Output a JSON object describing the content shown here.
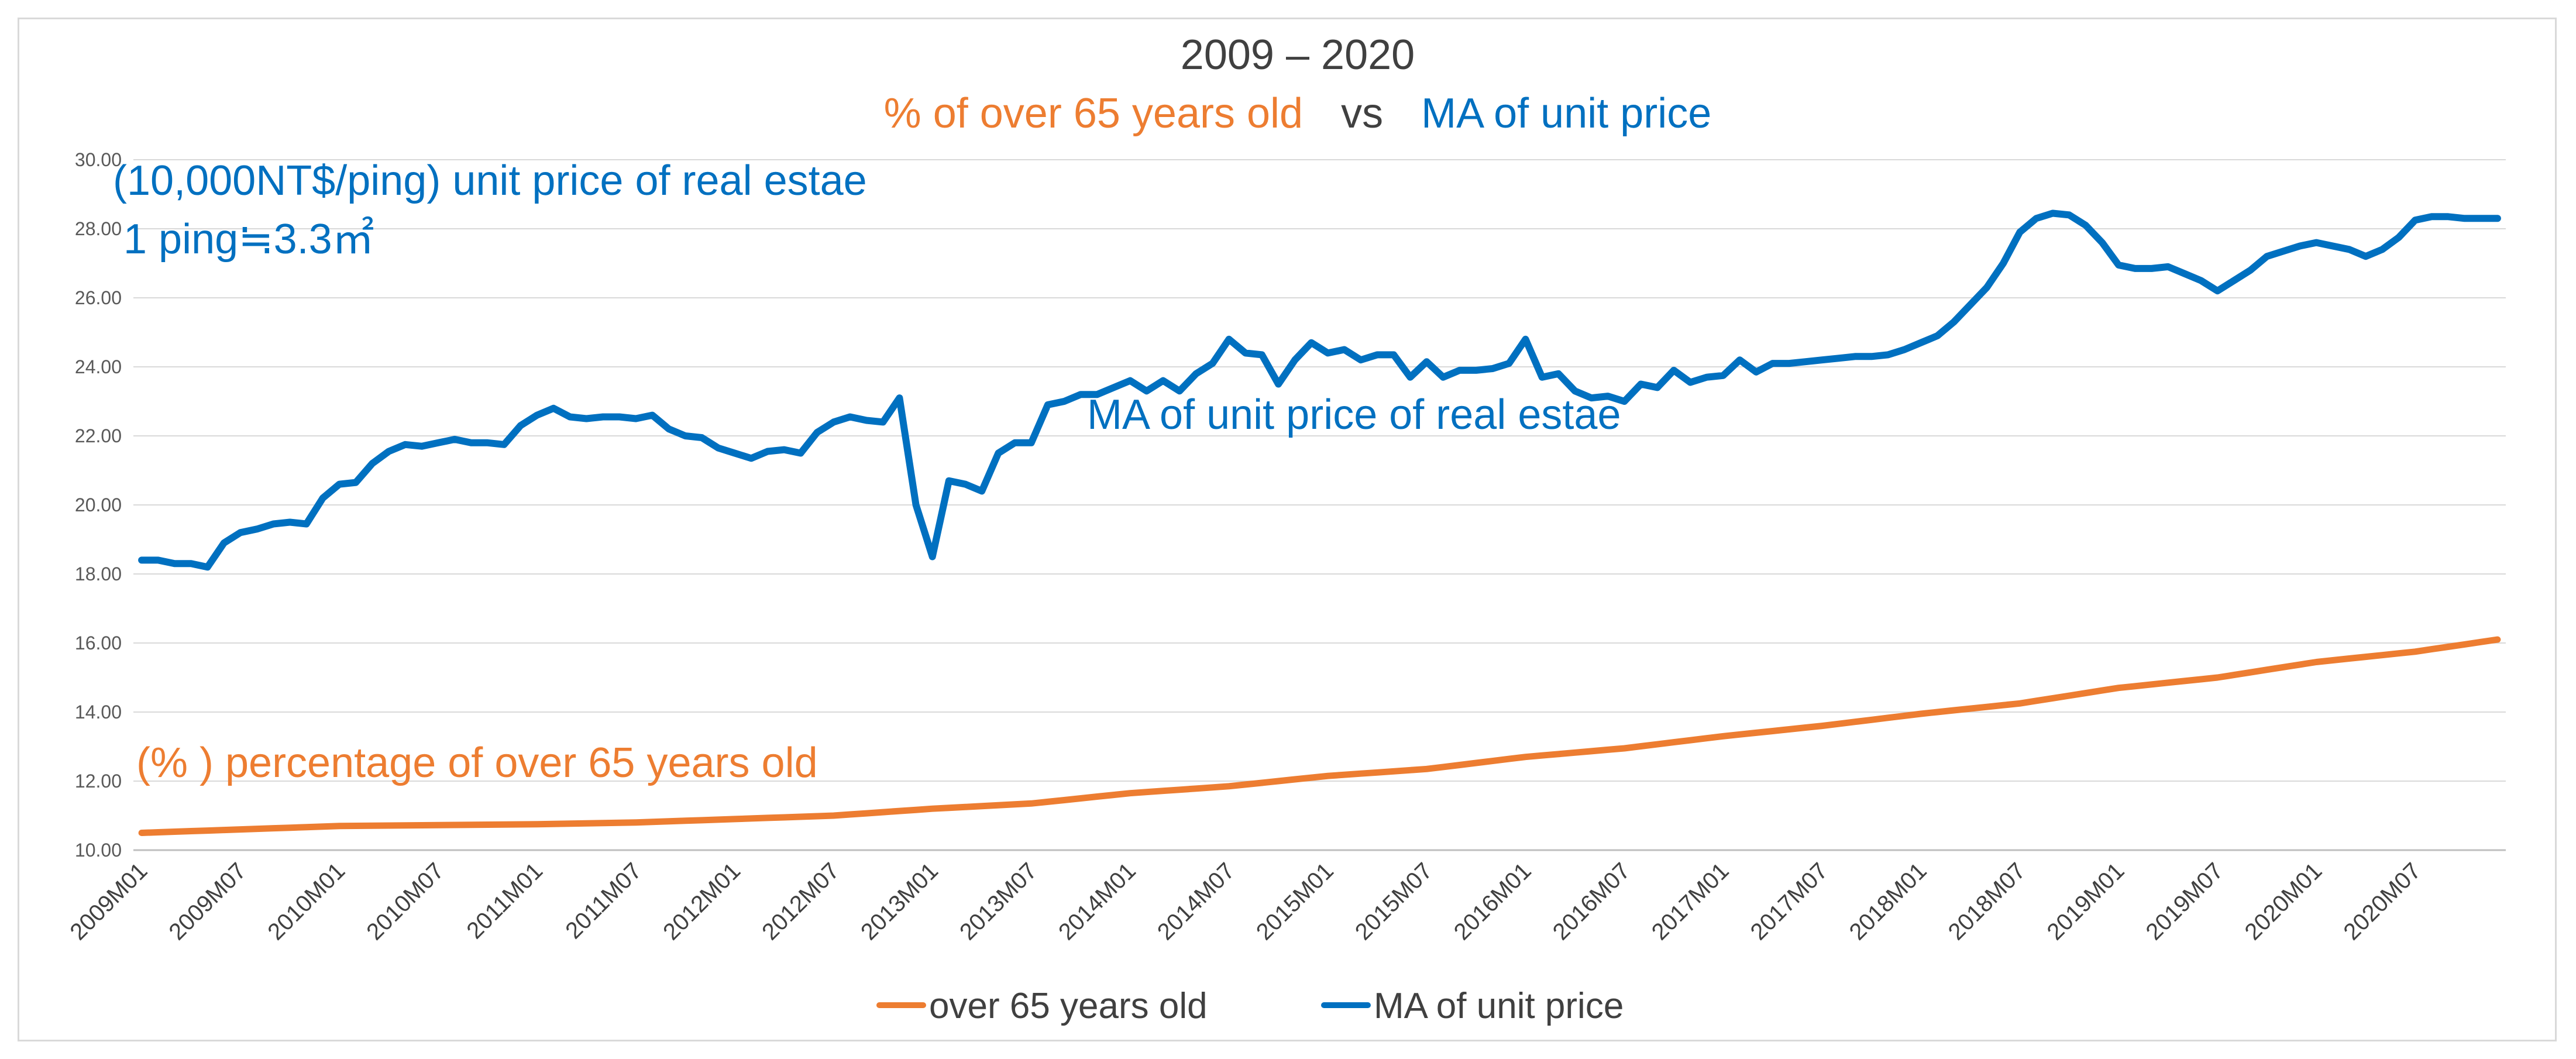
{
  "colors": {
    "orange": "#ED7D31",
    "blue": "#0070C0",
    "grid": "#d9d9d9",
    "axis": "#bfbfbf"
  },
  "title": {
    "line1": "2009 – 2020",
    "line2_part1": "% of over 65 years old",
    "line2_vs": "vs",
    "line2_part2": "MA of unit price"
  },
  "annotations": {
    "unit_label_line1": "(10,000NT$/ping) unit price of real estae",
    "unit_label_line2": "1 ping≒3.3㎡",
    "blue_series_label": "MA of unit price of real estae",
    "orange_series_label": "(% ) percentage of over 65 years old"
  },
  "legend": {
    "series1": "over 65 years old",
    "series2": "MA of unit price"
  },
  "chart_data": {
    "type": "line",
    "title": "2009 – 2020 % of over 65 years old vs MA of unit price",
    "xlabel": "",
    "ylabel": "",
    "ylim": [
      10,
      30
    ],
    "y_ticks": [
      "10.00",
      "12.00",
      "14.00",
      "16.00",
      "18.00",
      "20.00",
      "22.00",
      "24.00",
      "26.00",
      "28.00",
      "30.00"
    ],
    "x_start": "2009M01",
    "x_count": 144,
    "x_tick_labels": [
      "2009M01",
      "2009M07",
      "2010M01",
      "2010M07",
      "2011M01",
      "2011M07",
      "2012M01",
      "2012M07",
      "2013M01",
      "2013M07",
      "2014M01",
      "2014M07",
      "2015M01",
      "2015M07",
      "2016M01",
      "2016M07",
      "2017M01",
      "2017M07",
      "2018M01",
      "2018M07",
      "2019M01",
      "2019M07",
      "2020M01",
      "2020M07"
    ],
    "grid": true,
    "legend_position": "bottom",
    "series": [
      {
        "name": "over 65 years old",
        "color": "#ED7D31",
        "anchors": [
          [
            0,
            10.5
          ],
          [
            12,
            10.7
          ],
          [
            24,
            10.75
          ],
          [
            30,
            10.8
          ],
          [
            36,
            10.9
          ],
          [
            42,
            11.0
          ],
          [
            48,
            11.2
          ],
          [
            54,
            11.35
          ],
          [
            60,
            11.65
          ],
          [
            66,
            11.85
          ],
          [
            72,
            12.15
          ],
          [
            78,
            12.35
          ],
          [
            84,
            12.7
          ],
          [
            90,
            12.95
          ],
          [
            96,
            13.3
          ],
          [
            102,
            13.6
          ],
          [
            108,
            13.95
          ],
          [
            114,
            14.25
          ],
          [
            120,
            14.7
          ],
          [
            126,
            15.0
          ],
          [
            132,
            15.45
          ],
          [
            138,
            15.75
          ],
          [
            143,
            16.1
          ]
        ]
      },
      {
        "name": "MA of unit price",
        "color": "#0070C0",
        "anchors": [
          [
            0,
            18.4
          ],
          [
            1,
            18.4
          ],
          [
            2,
            18.3
          ],
          [
            3,
            18.3
          ],
          [
            4,
            18.2
          ],
          [
            5,
            18.9
          ],
          [
            6,
            19.2
          ],
          [
            7,
            19.3
          ],
          [
            8,
            19.45
          ],
          [
            9,
            19.5
          ],
          [
            10,
            19.45
          ],
          [
            11,
            20.2
          ],
          [
            12,
            20.6
          ],
          [
            13,
            20.65
          ],
          [
            14,
            21.2
          ],
          [
            15,
            21.55
          ],
          [
            16,
            21.75
          ],
          [
            17,
            21.7
          ],
          [
            18,
            21.8
          ],
          [
            19,
            21.9
          ],
          [
            20,
            21.8
          ],
          [
            21,
            21.8
          ],
          [
            22,
            21.75
          ],
          [
            23,
            22.3
          ],
          [
            24,
            22.6
          ],
          [
            25,
            22.8
          ],
          [
            26,
            22.55
          ],
          [
            27,
            22.5
          ],
          [
            28,
            22.55
          ],
          [
            29,
            22.55
          ],
          [
            30,
            22.5
          ],
          [
            31,
            22.6
          ],
          [
            32,
            22.2
          ],
          [
            33,
            22.0
          ],
          [
            34,
            21.95
          ],
          [
            35,
            21.65
          ],
          [
            36,
            21.5
          ],
          [
            37,
            21.35
          ],
          [
            38,
            21.55
          ],
          [
            39,
            21.6
          ],
          [
            40,
            21.5
          ],
          [
            41,
            22.1
          ],
          [
            42,
            22.4
          ],
          [
            43,
            22.55
          ],
          [
            44,
            22.45
          ],
          [
            45,
            22.4
          ],
          [
            46,
            23.1
          ],
          [
            47,
            20.0
          ],
          [
            48,
            18.5
          ],
          [
            49,
            20.7
          ],
          [
            50,
            20.6
          ],
          [
            51,
            20.4
          ],
          [
            52,
            21.5
          ],
          [
            53,
            21.8
          ],
          [
            54,
            21.8
          ],
          [
            55,
            22.9
          ],
          [
            56,
            23.0
          ],
          [
            57,
            23.2
          ],
          [
            58,
            23.2
          ],
          [
            59,
            23.4
          ],
          [
            60,
            23.6
          ],
          [
            61,
            23.3
          ],
          [
            62,
            23.6
          ],
          [
            63,
            23.3
          ],
          [
            64,
            23.8
          ],
          [
            65,
            24.1
          ],
          [
            66,
            24.8
          ],
          [
            67,
            24.4
          ],
          [
            68,
            24.35
          ],
          [
            69,
            23.5
          ],
          [
            70,
            24.2
          ],
          [
            71,
            24.7
          ],
          [
            72,
            24.4
          ],
          [
            73,
            24.5
          ],
          [
            74,
            24.2
          ],
          [
            75,
            24.35
          ],
          [
            76,
            24.35
          ],
          [
            77,
            23.7
          ],
          [
            78,
            24.15
          ],
          [
            79,
            23.7
          ],
          [
            80,
            23.9
          ],
          [
            81,
            23.9
          ],
          [
            82,
            23.95
          ],
          [
            83,
            24.1
          ],
          [
            84,
            24.8
          ],
          [
            85,
            23.7
          ],
          [
            86,
            23.8
          ],
          [
            87,
            23.3
          ],
          [
            88,
            23.1
          ],
          [
            89,
            23.15
          ],
          [
            90,
            23.0
          ],
          [
            91,
            23.5
          ],
          [
            92,
            23.4
          ],
          [
            93,
            23.9
          ],
          [
            94,
            23.55
          ],
          [
            95,
            23.7
          ],
          [
            96,
            23.75
          ],
          [
            97,
            24.2
          ],
          [
            98,
            23.85
          ],
          [
            99,
            24.1
          ],
          [
            100,
            24.1
          ],
          [
            101,
            24.15
          ],
          [
            102,
            24.2
          ],
          [
            103,
            24.25
          ],
          [
            104,
            24.3
          ],
          [
            105,
            24.3
          ],
          [
            106,
            24.35
          ],
          [
            107,
            24.5
          ],
          [
            108,
            24.7
          ],
          [
            109,
            24.9
          ],
          [
            110,
            25.3
          ],
          [
            111,
            25.8
          ],
          [
            112,
            26.3
          ],
          [
            113,
            27.0
          ],
          [
            114,
            27.9
          ],
          [
            115,
            28.3
          ],
          [
            116,
            28.45
          ],
          [
            117,
            28.4
          ],
          [
            118,
            28.1
          ],
          [
            119,
            27.6
          ],
          [
            120,
            26.95
          ],
          [
            121,
            26.85
          ],
          [
            122,
            26.85
          ],
          [
            123,
            26.9
          ],
          [
            124,
            26.7
          ],
          [
            125,
            26.5
          ],
          [
            126,
            26.2
          ],
          [
            127,
            26.5
          ],
          [
            128,
            26.8
          ],
          [
            129,
            27.2
          ],
          [
            130,
            27.35
          ],
          [
            131,
            27.5
          ],
          [
            132,
            27.6
          ],
          [
            133,
            27.5
          ],
          [
            134,
            27.4
          ],
          [
            135,
            27.2
          ],
          [
            136,
            27.4
          ],
          [
            137,
            27.75
          ],
          [
            138,
            28.25
          ],
          [
            139,
            28.35
          ],
          [
            140,
            28.35
          ],
          [
            141,
            28.3
          ],
          [
            142,
            28.3
          ],
          [
            143,
            28.3
          ]
        ]
      }
    ]
  }
}
